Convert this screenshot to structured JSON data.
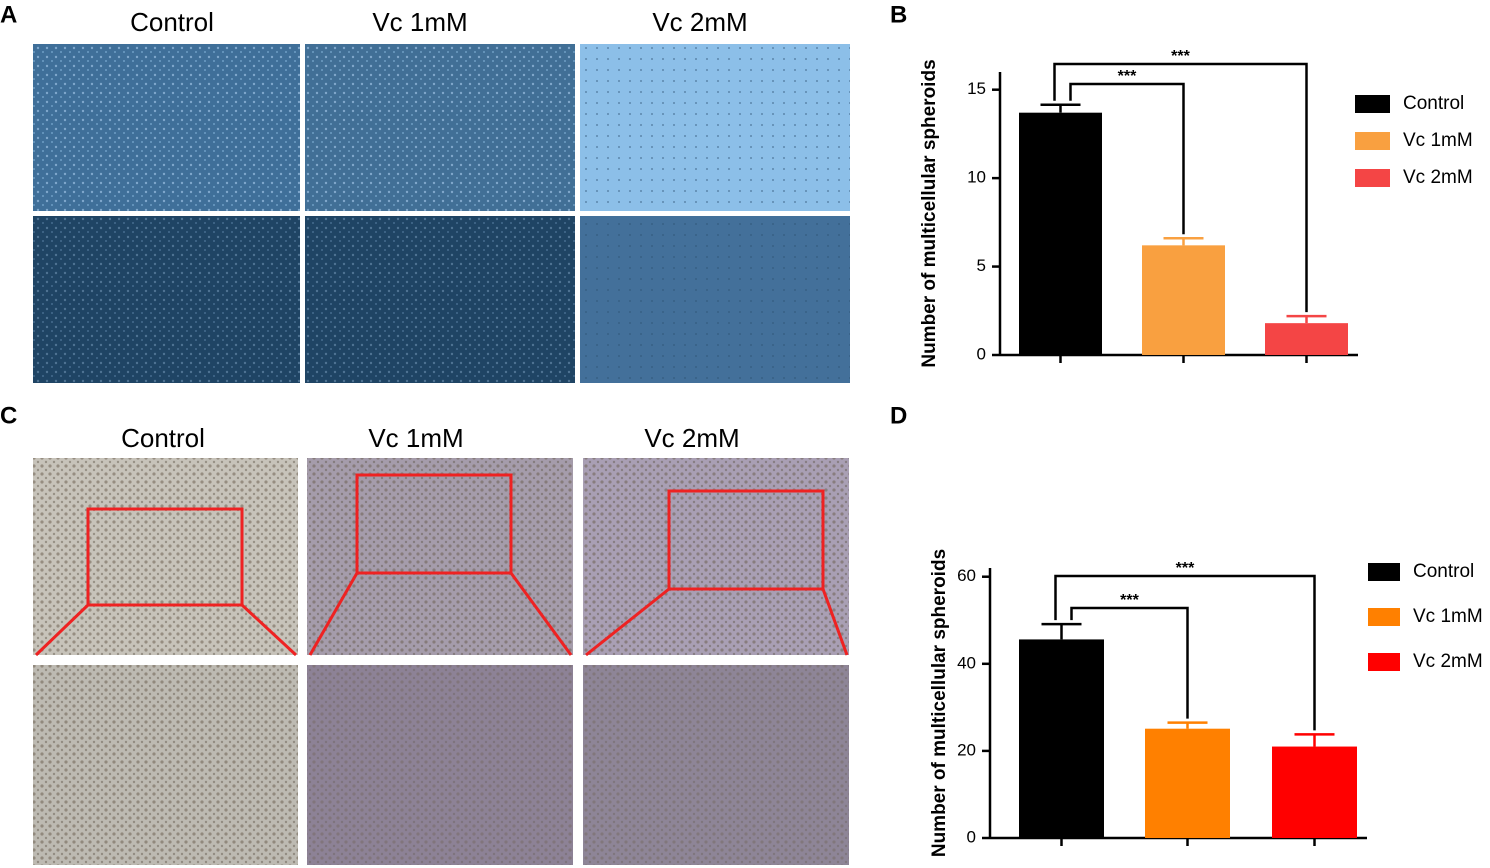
{
  "panels": [
    {
      "label": "A",
      "columns": [
        "Control",
        "Vc 1mM",
        "Vc 2mM"
      ]
    },
    {
      "label": "C",
      "columns": [
        "Control",
        "Vc 1mM",
        "Vc 2mM"
      ]
    }
  ],
  "chart_data": [
    {
      "type": "bar",
      "label": "B",
      "ylabel": "Number of multicellular spheroids",
      "ylim": [
        0,
        16
      ],
      "yticks": [
        0,
        5,
        10,
        15
      ],
      "series": [
        {
          "name": "Control",
          "color": "#000000",
          "values": [
            13.7
          ],
          "errors": [
            0.45
          ]
        },
        {
          "name": "Vc 1mM",
          "color": "#f9a040",
          "values": [
            6.2
          ],
          "errors": [
            0.4
          ]
        },
        {
          "name": "Vc 2mM",
          "color": "#f44545",
          "values": [
            1.8
          ],
          "errors": [
            0.4
          ]
        }
      ],
      "annotations": [
        "***",
        "***"
      ]
    },
    {
      "type": "bar",
      "label": "D",
      "ylabel": "Number of multicellular spheroids",
      "ylim": [
        0,
        62
      ],
      "yticks": [
        0,
        20,
        40,
        60
      ],
      "series": [
        {
          "name": "Control",
          "color": "#000000",
          "values": [
            45.6
          ],
          "errors": [
            3.5
          ]
        },
        {
          "name": "Vc 1mM",
          "color": "#ff8000",
          "values": [
            25.1
          ],
          "errors": [
            1.4
          ]
        },
        {
          "name": "Vc 2mM",
          "color": "#ff0000",
          "values": [
            21.0
          ],
          "errors": [
            2.8
          ]
        }
      ],
      "annotations": [
        "***",
        "***"
      ]
    }
  ]
}
